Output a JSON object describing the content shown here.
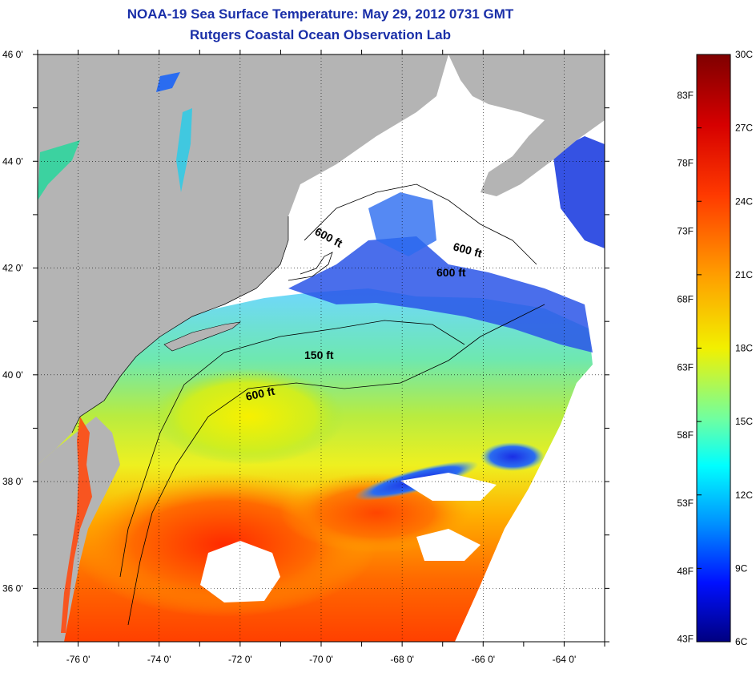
{
  "header": {
    "title_line1": "NOAA-19 Sea Surface Temperature:  May 29, 2012 0731 GMT",
    "title_line2": "Rutgers Coastal Ocean Observation Lab"
  },
  "map": {
    "lon_range": [
      -77,
      -63
    ],
    "lat_range": [
      35,
      46
    ],
    "lon_ticks": [
      "-76 0'",
      "-74 0'",
      "-72 0'",
      "-70 0'",
      "-68 0'",
      "-66 0'",
      "-64 0'"
    ],
    "lat_ticks": [
      "46 0'",
      "44 0'",
      "42 0'",
      "40 0'",
      "38 0'",
      "36 0'"
    ],
    "contour_labels": [
      "600 ft",
      "600 ft",
      "600 ft",
      "150 ft",
      "600 ft"
    ],
    "colors": {
      "land": "#b4b4b4",
      "cloud_mask": "#ffffff",
      "cold": "#1f3fe0",
      "warm": "#ff3000"
    }
  },
  "colorbar": {
    "celsius_range": [
      6,
      30
    ],
    "celsius_labels": [
      "30C",
      "27C",
      "24C",
      "21C",
      "18C",
      "15C",
      "12C",
      "9C",
      "6C"
    ],
    "fahrenheit_labels": [
      "83F",
      "78F",
      "73F",
      "68F",
      "63F",
      "58F",
      "53F",
      "48F",
      "43F"
    ]
  }
}
